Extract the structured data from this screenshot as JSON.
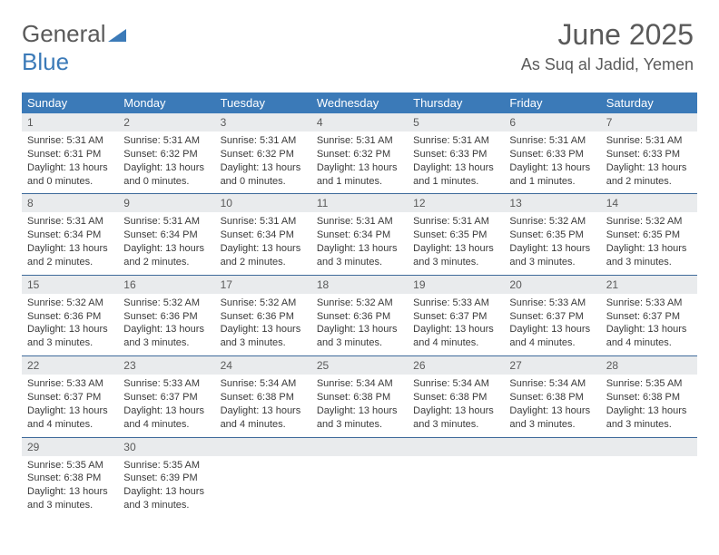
{
  "logo": {
    "line1": "General",
    "line2": "Blue"
  },
  "header": {
    "month": "June 2025",
    "location": "As Suq al Jadid, Yemen"
  },
  "colors": {
    "brand_blue": "#3b7ab8",
    "divider": "#3e6a9a",
    "text_gray": "#5a5a5a",
    "daynum_bg": "#e9ebed"
  },
  "dow": [
    "Sunday",
    "Monday",
    "Tuesday",
    "Wednesday",
    "Thursday",
    "Friday",
    "Saturday"
  ],
  "days": [
    {
      "n": 1,
      "sr": "5:31 AM",
      "ss": "6:31 PM",
      "dh": 13,
      "dm": 0
    },
    {
      "n": 2,
      "sr": "5:31 AM",
      "ss": "6:32 PM",
      "dh": 13,
      "dm": 0
    },
    {
      "n": 3,
      "sr": "5:31 AM",
      "ss": "6:32 PM",
      "dh": 13,
      "dm": 0
    },
    {
      "n": 4,
      "sr": "5:31 AM",
      "ss": "6:32 PM",
      "dh": 13,
      "dm": 1
    },
    {
      "n": 5,
      "sr": "5:31 AM",
      "ss": "6:33 PM",
      "dh": 13,
      "dm": 1
    },
    {
      "n": 6,
      "sr": "5:31 AM",
      "ss": "6:33 PM",
      "dh": 13,
      "dm": 1
    },
    {
      "n": 7,
      "sr": "5:31 AM",
      "ss": "6:33 PM",
      "dh": 13,
      "dm": 2
    },
    {
      "n": 8,
      "sr": "5:31 AM",
      "ss": "6:34 PM",
      "dh": 13,
      "dm": 2
    },
    {
      "n": 9,
      "sr": "5:31 AM",
      "ss": "6:34 PM",
      "dh": 13,
      "dm": 2
    },
    {
      "n": 10,
      "sr": "5:31 AM",
      "ss": "6:34 PM",
      "dh": 13,
      "dm": 2
    },
    {
      "n": 11,
      "sr": "5:31 AM",
      "ss": "6:34 PM",
      "dh": 13,
      "dm": 3
    },
    {
      "n": 12,
      "sr": "5:31 AM",
      "ss": "6:35 PM",
      "dh": 13,
      "dm": 3
    },
    {
      "n": 13,
      "sr": "5:32 AM",
      "ss": "6:35 PM",
      "dh": 13,
      "dm": 3
    },
    {
      "n": 14,
      "sr": "5:32 AM",
      "ss": "6:35 PM",
      "dh": 13,
      "dm": 3
    },
    {
      "n": 15,
      "sr": "5:32 AM",
      "ss": "6:36 PM",
      "dh": 13,
      "dm": 3
    },
    {
      "n": 16,
      "sr": "5:32 AM",
      "ss": "6:36 PM",
      "dh": 13,
      "dm": 3
    },
    {
      "n": 17,
      "sr": "5:32 AM",
      "ss": "6:36 PM",
      "dh": 13,
      "dm": 3
    },
    {
      "n": 18,
      "sr": "5:32 AM",
      "ss": "6:36 PM",
      "dh": 13,
      "dm": 3
    },
    {
      "n": 19,
      "sr": "5:33 AM",
      "ss": "6:37 PM",
      "dh": 13,
      "dm": 4
    },
    {
      "n": 20,
      "sr": "5:33 AM",
      "ss": "6:37 PM",
      "dh": 13,
      "dm": 4
    },
    {
      "n": 21,
      "sr": "5:33 AM",
      "ss": "6:37 PM",
      "dh": 13,
      "dm": 4
    },
    {
      "n": 22,
      "sr": "5:33 AM",
      "ss": "6:37 PM",
      "dh": 13,
      "dm": 4
    },
    {
      "n": 23,
      "sr": "5:33 AM",
      "ss": "6:37 PM",
      "dh": 13,
      "dm": 4
    },
    {
      "n": 24,
      "sr": "5:34 AM",
      "ss": "6:38 PM",
      "dh": 13,
      "dm": 4
    },
    {
      "n": 25,
      "sr": "5:34 AM",
      "ss": "6:38 PM",
      "dh": 13,
      "dm": 3
    },
    {
      "n": 26,
      "sr": "5:34 AM",
      "ss": "6:38 PM",
      "dh": 13,
      "dm": 3
    },
    {
      "n": 27,
      "sr": "5:34 AM",
      "ss": "6:38 PM",
      "dh": 13,
      "dm": 3
    },
    {
      "n": 28,
      "sr": "5:35 AM",
      "ss": "6:38 PM",
      "dh": 13,
      "dm": 3
    },
    {
      "n": 29,
      "sr": "5:35 AM",
      "ss": "6:38 PM",
      "dh": 13,
      "dm": 3
    },
    {
      "n": 30,
      "sr": "5:35 AM",
      "ss": "6:39 PM",
      "dh": 13,
      "dm": 3
    }
  ],
  "labels": {
    "sunrise": "Sunrise:",
    "sunset": "Sunset:",
    "daylight": "Daylight:",
    "hours": "hours",
    "and": "and",
    "minutes": "minutes."
  }
}
